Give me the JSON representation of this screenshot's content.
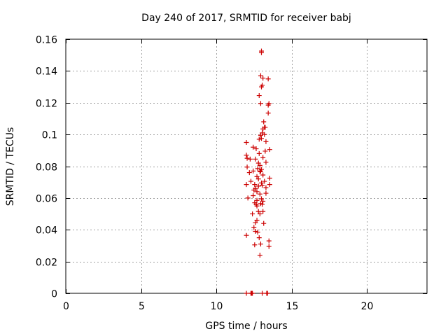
{
  "chart_data": {
    "type": "scatter",
    "title": "Day 240 of 2017, SRMTID for receiver babj",
    "xlabel": "GPS time / hours",
    "ylabel": "SRMTID / TECUs",
    "xlim": [
      0,
      24
    ],
    "ylim": [
      0,
      0.16
    ],
    "xticks": [
      0,
      5,
      10,
      15,
      20
    ],
    "xtick_labels": [
      "0",
      "5",
      "10",
      "15",
      "20"
    ],
    "yticks": [
      0,
      0.02,
      0.04,
      0.06,
      0.08,
      0.1,
      0.12,
      0.14,
      0.16
    ],
    "ytick_labels": [
      "0",
      "0.02",
      "0.04",
      "0.06",
      "0.08",
      "0.1",
      "0.12",
      "0.14",
      "0.16"
    ],
    "grid": true,
    "marker": "+",
    "color": "#cc0000",
    "series": [
      {
        "name": "SRMTID",
        "x": [
          13.0,
          13.0,
          12.95,
          13.1,
          13.05,
          13.45,
          13.0,
          12.85,
          12.95,
          13.5,
          13.45,
          13.45,
          13.15,
          13.2,
          13.1,
          13.25,
          13.05,
          12.95,
          13.2,
          12.85,
          13.0,
          13.3,
          12.0,
          13.55,
          12.45,
          12.65,
          13.25,
          12.85,
          12.0,
          12.05,
          13.1,
          12.25,
          12.6,
          13.3,
          12.8,
          12.9,
          12.05,
          12.75,
          13.0,
          12.95,
          12.45,
          12.9,
          13.1,
          12.2,
          12.7,
          12.8,
          13.55,
          13.2,
          12.3,
          13.0,
          12.55,
          13.05,
          12.0,
          12.8,
          13.3,
          13.55,
          12.6,
          12.5,
          12.7,
          12.9,
          13.3,
          12.45,
          13.0,
          12.1,
          12.7,
          13.1,
          12.55,
          12.95,
          13.05,
          12.65,
          12.7,
          12.8,
          13.1,
          12.4,
          12.9,
          12.7,
          12.6,
          13.15,
          12.5,
          12.6,
          12.75,
          12.0,
          12.85,
          13.5,
          12.95,
          12.55,
          13.5,
          12.9,
          13.05
        ],
        "y": [
          0.1525,
          0.1515,
          0.137,
          0.1355,
          0.131,
          0.135,
          0.13,
          0.1245,
          0.1195,
          0.1195,
          0.1185,
          0.1135,
          0.108,
          0.1045,
          0.1035,
          0.1045,
          0.101,
          0.0995,
          0.1,
          0.097,
          0.0975,
          0.0955,
          0.095,
          0.0905,
          0.092,
          0.091,
          0.0895,
          0.088,
          0.087,
          0.085,
          0.0855,
          0.0845,
          0.0845,
          0.0825,
          0.082,
          0.0805,
          0.0795,
          0.0785,
          0.078,
          0.077,
          0.077,
          0.0765,
          0.0745,
          0.076,
          0.0735,
          0.072,
          0.0725,
          0.0705,
          0.0705,
          0.0695,
          0.0685,
          0.068,
          0.0685,
          0.0675,
          0.0665,
          0.0685,
          0.066,
          0.065,
          0.064,
          0.0625,
          0.063,
          0.0615,
          0.0595,
          0.06,
          0.0585,
          0.058,
          0.057,
          0.0565,
          0.056,
          0.056,
          0.055,
          0.0515,
          0.0515,
          0.05,
          0.05,
          0.046,
          0.0445,
          0.044,
          0.0415,
          0.039,
          0.0385,
          0.0365,
          0.035,
          0.033,
          0.031,
          0.0305,
          0.0295,
          0.024,
          0.0
        ],
        "zero_x": [
          12.0,
          12.3,
          12.35,
          12.4,
          13.35,
          13.4
        ]
      }
    ]
  }
}
